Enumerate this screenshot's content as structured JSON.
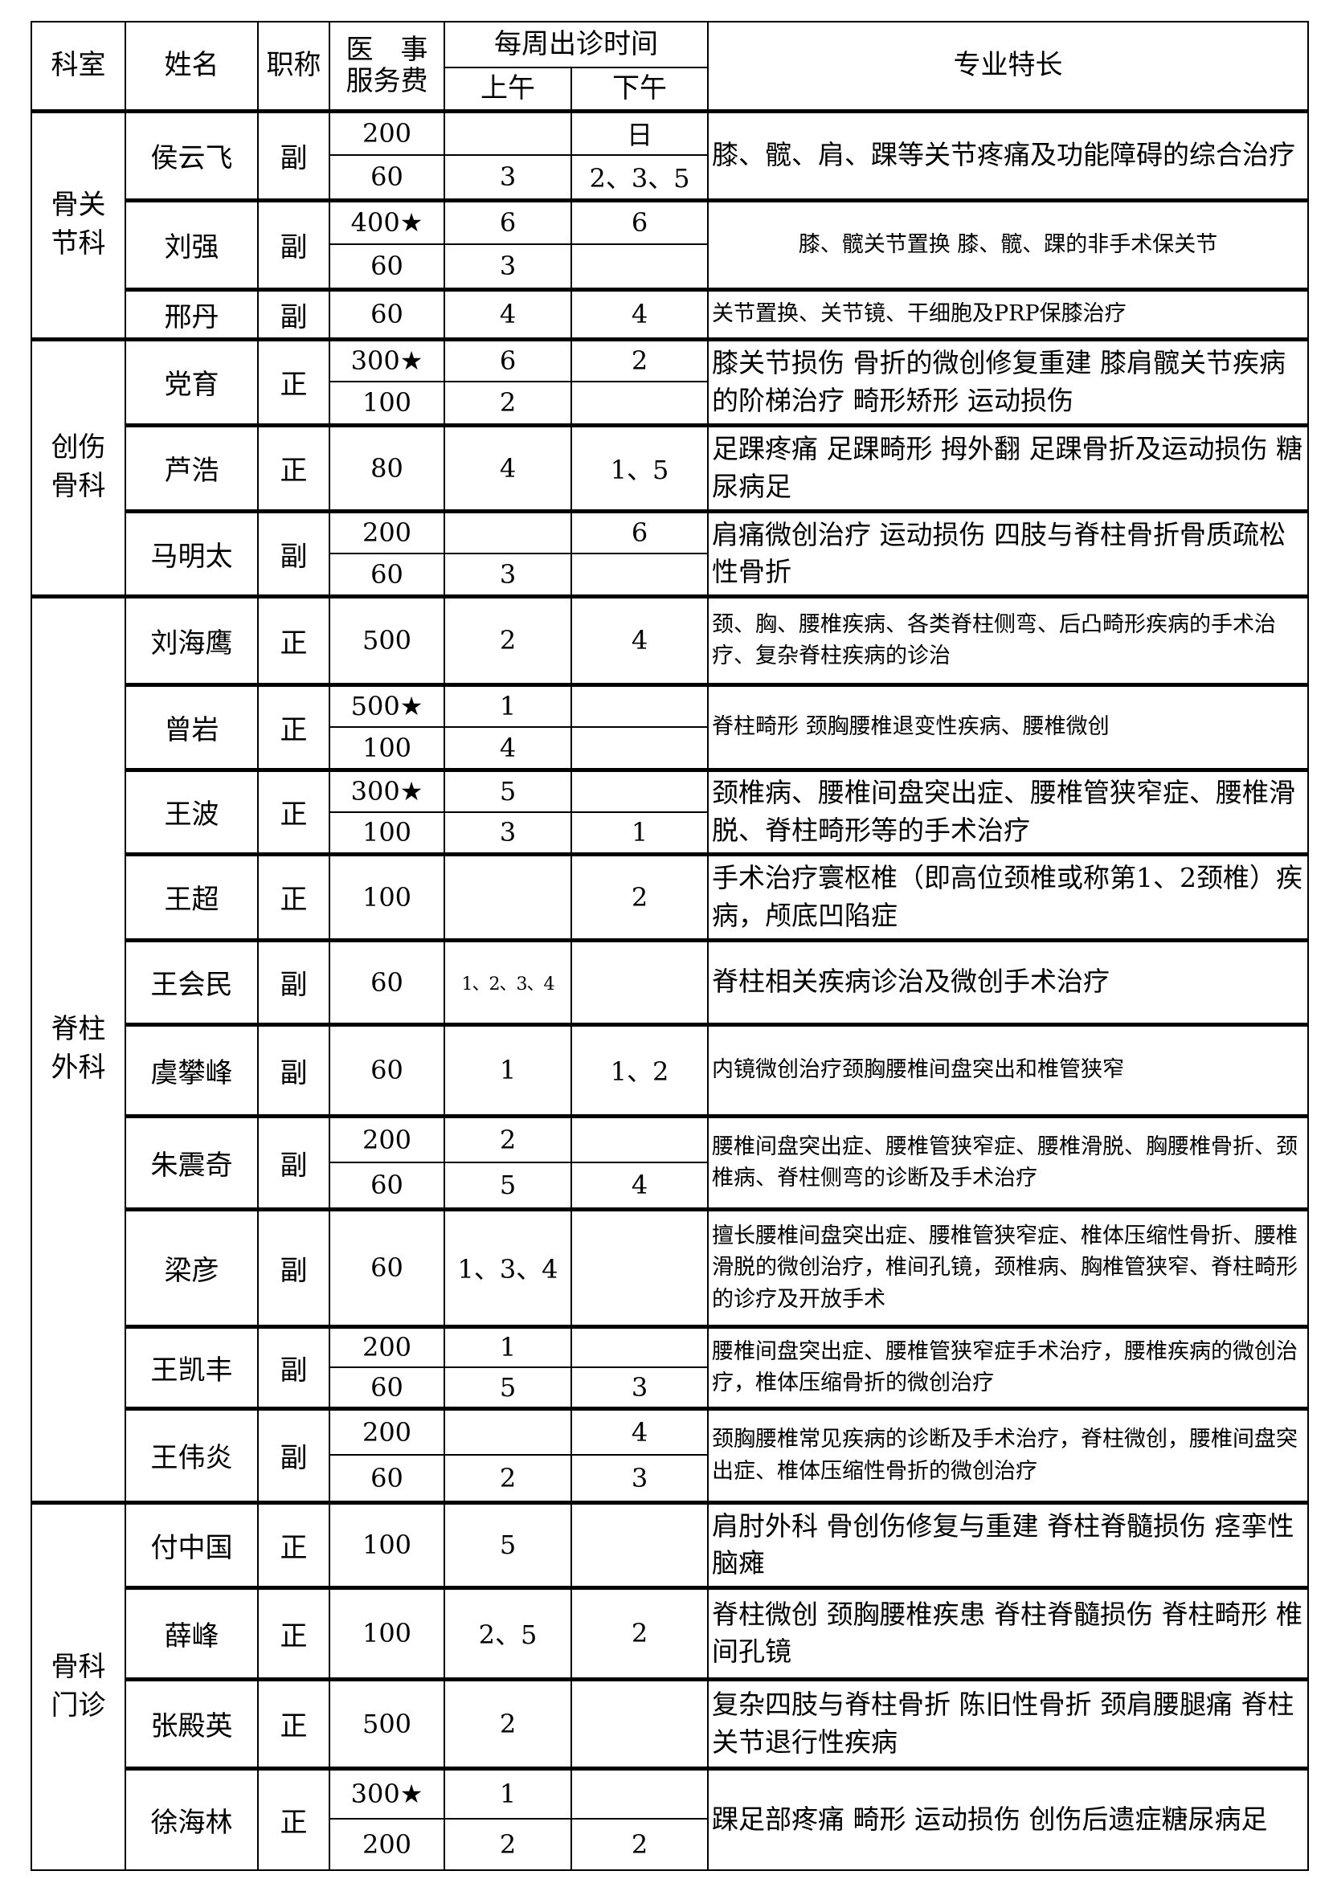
{
  "header": {
    "dept": "科室",
    "name": "姓名",
    "title": "职称",
    "fee": "医　事\n服务费",
    "schedule": "每周出诊时间",
    "am": "上午",
    "pm": "下午",
    "specialty": "专业特长"
  },
  "departments": [
    {
      "name": "骨关节科",
      "doctors": [
        {
          "name": "侯云飞",
          "title": "副",
          "specialty": "膝、髋、肩、踝等关节疼痛及功能障碍的综合治疗",
          "sessions": [
            {
              "fee": "200",
              "am": "",
              "pm": "日"
            },
            {
              "fee": "60",
              "am": "3",
              "pm": "2、3、5"
            }
          ]
        },
        {
          "name": "刘强",
          "title": "副",
          "specialty": "膝、髋关节置换 膝、髋、踝的非手术保关节",
          "sessions": [
            {
              "fee": "400★",
              "am": "6",
              "pm": "6"
            },
            {
              "fee": "60",
              "am": "3",
              "pm": ""
            }
          ]
        },
        {
          "name": "邢丹",
          "title": "副",
          "specialty": "关节置换、关节镜、干细胞及PRP保膝治疗",
          "sessions": [
            {
              "fee": "60",
              "am": "4",
              "pm": "4"
            }
          ]
        }
      ]
    },
    {
      "name": "创伤骨科",
      "doctors": [
        {
          "name": "党育",
          "title": "正",
          "specialty": "膝关节损伤 骨折的微创修复重建 膝肩髋关节疾病的阶梯治疗 畸形矫形 运动损伤",
          "sessions": [
            {
              "fee": "300★",
              "am": "6",
              "pm": "2"
            },
            {
              "fee": "100",
              "am": "2",
              "pm": ""
            }
          ]
        },
        {
          "name": "芦浩",
          "title": "正",
          "specialty": "足踝疼痛 足踝畸形 拇外翻 足踝骨折及运动损伤 糖尿病足",
          "sessions": [
            {
              "fee": "80",
              "am": "4",
              "pm": "1、5"
            }
          ]
        },
        {
          "name": "马明太",
          "title": "副",
          "specialty": "肩痛微创治疗 运动损伤 四肢与脊柱骨折骨质疏松性骨折",
          "sessions": [
            {
              "fee": "200",
              "am": "",
              "pm": "6"
            },
            {
              "fee": "60",
              "am": "3",
              "pm": ""
            }
          ]
        }
      ]
    },
    {
      "name": "脊柱外科",
      "doctors": [
        {
          "name": "刘海鹰",
          "title": "正",
          "specialty": "颈、胸、腰椎疾病、各类脊柱侧弯、后凸畸形疾病的手术治疗、复杂脊柱疾病的诊治",
          "sessions": [
            {
              "fee": "500",
              "am": "2",
              "pm": "4"
            }
          ]
        },
        {
          "name": "曾岩",
          "title": "正",
          "specialty": "脊柱畸形 颈胸腰椎退变性疾病、腰椎微创",
          "sessions": [
            {
              "fee": "500★",
              "am": "1",
              "pm": ""
            },
            {
              "fee": "100",
              "am": "4",
              "pm": ""
            }
          ]
        },
        {
          "name": "王波",
          "title": "正",
          "specialty": "颈椎病、腰椎间盘突出症、腰椎管狭窄症、腰椎滑脱、脊柱畸形等的手术治疗",
          "sessions": [
            {
              "fee": "300★",
              "am": "5",
              "pm": ""
            },
            {
              "fee": "100",
              "am": "3",
              "pm": "1"
            }
          ]
        },
        {
          "name": "王超",
          "title": "正",
          "specialty": "手术治疗寰枢椎（即高位颈椎或称第1、2颈椎）疾病，颅底凹陷症",
          "sessions": [
            {
              "fee": "100",
              "am": "",
              "pm": "2"
            }
          ]
        },
        {
          "name": "王会民",
          "title": "副",
          "specialty": "脊柱相关疾病诊治及微创手术治疗",
          "sessions": [
            {
              "fee": "60",
              "am": "1、2、3、4",
              "pm": ""
            }
          ]
        },
        {
          "name": "虞攀峰",
          "title": "副",
          "specialty": "内镜微创治疗颈胸腰椎间盘突出和椎管狭窄",
          "sessions": [
            {
              "fee": "60",
              "am": "1",
              "pm": "1、2"
            }
          ]
        },
        {
          "name": "朱震奇",
          "title": "副",
          "specialty": "腰椎间盘突出症、腰椎管狭窄症、腰椎滑脱、胸腰椎骨折、颈椎病、脊柱侧弯的诊断及手术治疗",
          "sessions": [
            {
              "fee": "200",
              "am": "2",
              "pm": ""
            },
            {
              "fee": "60",
              "am": "5",
              "pm": "4"
            }
          ]
        },
        {
          "name": "梁彦",
          "title": "副",
          "specialty": "擅长腰椎间盘突出症、腰椎管狭窄症、椎体压缩性骨折、腰椎滑脱的微创治疗，椎间孔镜，颈椎病、胸椎管狭窄、脊柱畸形的诊疗及开放手术",
          "sessions": [
            {
              "fee": "60",
              "am": "1、3、4",
              "pm": ""
            }
          ]
        },
        {
          "name": "王凯丰",
          "title": "副",
          "specialty": "腰椎间盘突出症、腰椎管狭窄症手术治疗，腰椎疾病的微创治疗，椎体压缩骨折的微创治疗",
          "sessions": [
            {
              "fee": "200",
              "am": "1",
              "pm": ""
            },
            {
              "fee": "60",
              "am": "5",
              "pm": "3"
            }
          ]
        },
        {
          "name": "王伟炎",
          "title": "副",
          "specialty": "颈胸腰椎常见疾病的诊断及手术治疗，脊柱微创，腰椎间盘突出症、椎体压缩性骨折的微创治疗",
          "sessions": [
            {
              "fee": "200",
              "am": "",
              "pm": "4"
            },
            {
              "fee": "60",
              "am": "2",
              "pm": "3"
            }
          ]
        }
      ]
    },
    {
      "name": "骨科门诊",
      "doctors": [
        {
          "name": "付中国",
          "title": "正",
          "specialty": "肩肘外科 骨创伤修复与重建 脊柱脊髓损伤 痉挛性脑瘫",
          "sessions": [
            {
              "fee": "100",
              "am": "5",
              "pm": ""
            }
          ]
        },
        {
          "name": "薛峰",
          "title": "正",
          "specialty": "脊柱微创 颈胸腰椎疾患 脊柱脊髓损伤 脊柱畸形 椎间孔镜",
          "sessions": [
            {
              "fee": "100",
              "am": "2、5",
              "pm": "2"
            }
          ]
        },
        {
          "name": "张殿英",
          "title": "正",
          "specialty": "复杂四肢与脊柱骨折 陈旧性骨折 颈肩腰腿痛 脊柱关节退行性疾病",
          "sessions": [
            {
              "fee": "500",
              "am": "2",
              "pm": ""
            }
          ]
        },
        {
          "name": "徐海林",
          "title": "正",
          "specialty": "踝足部疼痛 畸形 运动损伤 创伤后遗症糖尿病足",
          "sessions": [
            {
              "fee": "300★",
              "am": "1",
              "pm": ""
            },
            {
              "fee": "200",
              "am": "2",
              "pm": "2"
            }
          ]
        }
      ]
    }
  ]
}
